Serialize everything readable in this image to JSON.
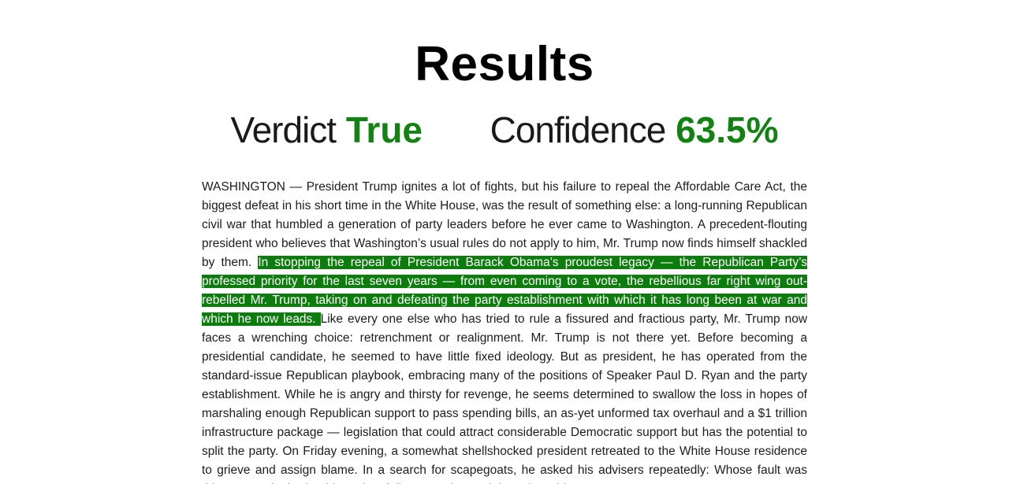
{
  "results": {
    "title": "Results",
    "verdict_label": "Verdict",
    "verdict_value": "True",
    "confidence_label": "Confidence",
    "confidence_value": "63.5%"
  },
  "article": {
    "before_highlight": "WASHINGTON — President Trump ignites a lot of fights, but his failure to repeal the Affordable Care Act, the biggest defeat in his short time in the White House, was the result of something else: a long-running Republican civil war that humbled a generation of party leaders before he ever came to Washington. A precedent-flouting president who believes that Washington’s usual rules do not apply to him, Mr. Trump now finds himself shackled by them. ",
    "highlighted": "In stopping the repeal of President Barack Obama’s proudest legacy — the Republican Party’s professed priority for the last seven years — from even coming to a vote, the rebellious far right wing out-rebelled Mr. Trump, taking on and defeating the party establishment with which it has long been at war and which he now leads. ",
    "after_highlight": "Like every one else who has tried to rule a fissured and fractious party, Mr. Trump now faces a wrenching choice: retrenchment or realignment. Mr. Trump is not there yet. Before becoming a presidential candidate, he seemed to have little fixed ideology. But as president, he has operated from the standard-issue Republican playbook, embracing many of the positions of Speaker Paul D. Ryan and the party establishment. While he is angry and thirsty for revenge, he seems determined to swallow the loss in hopes of marshaling enough Republican support to pass spending bills, an as-yet unformed tax overhaul and a $1 trillion infrastructure package — legislation that could attract considerable Democratic support but has the potential to split the party. On Friday evening, a somewhat shellshocked president retreated to the White House residence to grieve and assign blame. In a search for scapegoats, he asked his advisers repeatedly: Whose fault was this? Increasingly, that blame has fallen on Reince Priebus, the White House"
  },
  "colors": {
    "accent_green": "#128212",
    "highlight_green": "#0c7d0c"
  }
}
